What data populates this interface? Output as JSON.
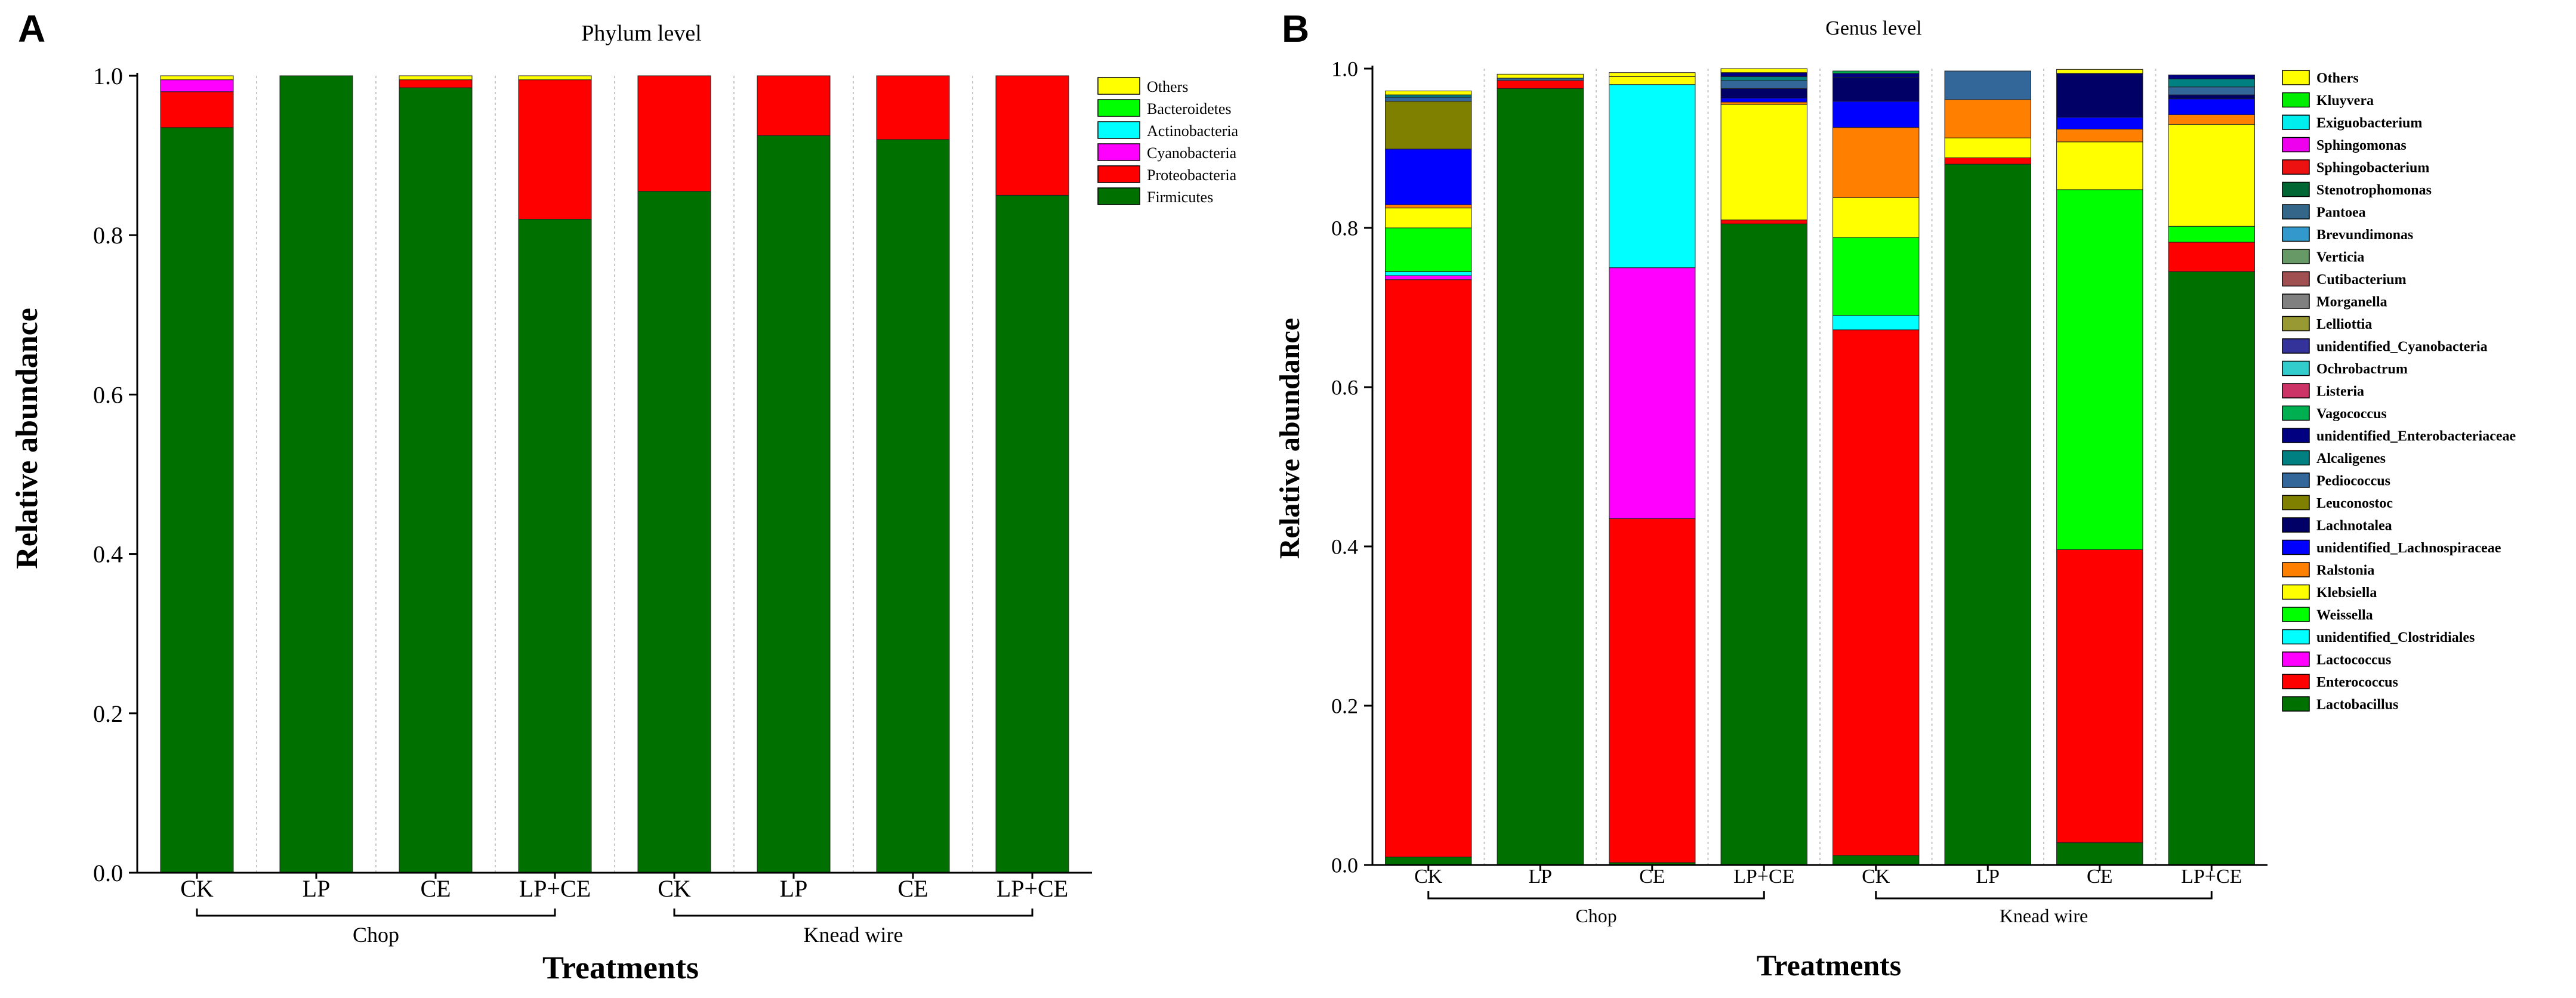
{
  "figure": {
    "panel_a": "A",
    "panel_b": "B"
  },
  "chart_data": [
    {
      "type": "bar",
      "stacked": true,
      "title": "Phylum level",
      "xlabel": "Treatments",
      "ylabel": "Relative abundance",
      "ylim": [
        0,
        1.0
      ],
      "yticks": [
        "0.0",
        "0.2",
        "0.4",
        "0.6",
        "0.8",
        "1.0"
      ],
      "categories": [
        "CK",
        "LP",
        "CE",
        "LP+CE",
        "CK",
        "LP",
        "CE",
        "LP+CE"
      ],
      "groups": [
        {
          "label": "Chop",
          "from": 0,
          "to": 3
        },
        {
          "label": "Knead wire",
          "from": 4,
          "to": 7
        }
      ],
      "legend_position": "top-right",
      "series": [
        {
          "name": "Firmicutes",
          "color": "#007000",
          "values": [
            0.935,
            1.0,
            0.985,
            0.82,
            0.855,
            0.925,
            0.92,
            0.85
          ]
        },
        {
          "name": "Proteobacteria",
          "color": "#ff0000",
          "values": [
            0.045,
            0.0,
            0.01,
            0.175,
            0.145,
            0.075,
            0.08,
            0.15
          ]
        },
        {
          "name": "Cyanobacteria",
          "color": "#ff00ff",
          "values": [
            0.015,
            0.0,
            0.0,
            0.0,
            0.0,
            0.0,
            0.0,
            0.0
          ]
        },
        {
          "name": "Actinobacteria",
          "color": "#00ffff",
          "values": [
            0.0,
            0.0,
            0.0,
            0.0,
            0.0,
            0.0,
            0.0,
            0.0
          ]
        },
        {
          "name": "Bacteroidetes",
          "color": "#00ff00",
          "values": [
            0.0,
            0.0,
            0.0,
            0.0,
            0.0,
            0.0,
            0.0,
            0.0
          ]
        },
        {
          "name": "Others",
          "color": "#ffff00",
          "values": [
            0.005,
            0.0,
            0.005,
            0.005,
            0.0,
            0.0,
            0.0,
            0.0
          ]
        }
      ]
    },
    {
      "type": "bar",
      "stacked": true,
      "title": "Genus level",
      "xlabel": "Treatments",
      "ylabel": "Relative abundance",
      "ylim": [
        0,
        1.0
      ],
      "yticks": [
        "0.0",
        "0.2",
        "0.4",
        "0.6",
        "0.8",
        "1.0"
      ],
      "categories": [
        "CK",
        "LP",
        "CE",
        "LP+CE",
        "CK",
        "LP",
        "CE",
        "LP+CE"
      ],
      "groups": [
        {
          "label": "Chop",
          "from": 0,
          "to": 3
        },
        {
          "label": "Knead wire",
          "from": 4,
          "to": 7
        }
      ],
      "legend_position": "right",
      "series": [
        {
          "name": "Lactobacillus",
          "color": "#007000",
          "values": [
            0.01,
            0.975,
            0.003,
            0.805,
            0.012,
            0.88,
            0.028,
            0.745
          ]
        },
        {
          "name": "Enterococcus",
          "color": "#ff0000",
          "values": [
            0.725,
            0.01,
            0.432,
            0.005,
            0.66,
            0.008,
            0.368,
            0.037
          ]
        },
        {
          "name": "Lactococcus",
          "color": "#ff00ff",
          "values": [
            0.005,
            0.0,
            0.315,
            0.0,
            0.0,
            0.0,
            0.0,
            0.0
          ]
        },
        {
          "name": "unidentified_Clostridiales",
          "color": "#00ffff",
          "values": [
            0.005,
            0.0,
            0.23,
            0.0,
            0.018,
            0.0,
            0.0,
            0.0
          ]
        },
        {
          "name": "Weissella",
          "color": "#00ff00",
          "values": [
            0.055,
            0.0,
            0.0,
            0.0,
            0.098,
            0.0,
            0.452,
            0.02
          ]
        },
        {
          "name": "Klebsiella",
          "color": "#ffff00",
          "values": [
            0.025,
            0.0,
            0.01,
            0.145,
            0.05,
            0.025,
            0.06,
            0.128
          ]
        },
        {
          "name": "Ralstonia",
          "color": "#ff8000",
          "values": [
            0.004,
            0.0,
            0.0,
            0.003,
            0.088,
            0.048,
            0.016,
            0.012
          ]
        },
        {
          "name": "unidentified_Lachnospiraceae",
          "color": "#0000ff",
          "values": [
            0.07,
            0.0,
            0.0,
            0.005,
            0.033,
            0.0,
            0.015,
            0.02
          ]
        },
        {
          "name": "Lachnotalea",
          "color": "#000066",
          "values": [
            0.0,
            0.0,
            0.0,
            0.012,
            0.03,
            0.0,
            0.055,
            0.005
          ]
        },
        {
          "name": "Leuconostoc",
          "color": "#808000",
          "values": [
            0.06,
            0.0,
            0.0,
            0.0,
            0.0,
            0.0,
            0.0,
            0.0
          ]
        },
        {
          "name": "Pediococcus",
          "color": "#336699",
          "values": [
            0.005,
            0.003,
            0.0,
            0.01,
            0.0,
            0.036,
            0.0,
            0.01
          ]
        },
        {
          "name": "Alcaligenes",
          "color": "#008080",
          "values": [
            0.003,
            0.0,
            0.0,
            0.005,
            0.0,
            0.0,
            0.0,
            0.01
          ]
        },
        {
          "name": "unidentified_Enterobacteriaceae",
          "color": "#000080",
          "values": [
            0.0,
            0.0,
            0.0,
            0.005,
            0.005,
            0.0,
            0.0,
            0.005
          ]
        },
        {
          "name": "Vagococcus",
          "color": "#00b050",
          "values": [
            0.0,
            0.0,
            0.0,
            0.0,
            0.003,
            0.0,
            0.0,
            0.0
          ]
        },
        {
          "name": "Listeria",
          "color": "#cc3366",
          "values": [
            0.0,
            0.0,
            0.0,
            0.0,
            0.0,
            0.0,
            0.0,
            0.0
          ]
        },
        {
          "name": "Ochrobactrum",
          "color": "#33cccc",
          "values": [
            0.0,
            0.0,
            0.0,
            0.0,
            0.0,
            0.0,
            0.0,
            0.0
          ]
        },
        {
          "name": "unidentified_Cyanobacteria",
          "color": "#333399",
          "values": [
            0.0,
            0.0,
            0.0,
            0.0,
            0.0,
            0.0,
            0.0,
            0.0
          ]
        },
        {
          "name": "Lelliottia",
          "color": "#999933",
          "values": [
            0.0,
            0.0,
            0.0,
            0.0,
            0.0,
            0.0,
            0.0,
            0.0
          ]
        },
        {
          "name": "Morganella",
          "color": "#808080",
          "values": [
            0.0,
            0.0,
            0.0,
            0.0,
            0.0,
            0.0,
            0.0,
            0.0
          ]
        },
        {
          "name": "Cutibacterium",
          "color": "#a05050",
          "values": [
            0.0,
            0.0,
            0.0,
            0.0,
            0.0,
            0.0,
            0.0,
            0.0
          ]
        },
        {
          "name": "Verticia",
          "color": "#669966",
          "values": [
            0.0,
            0.0,
            0.0,
            0.0,
            0.0,
            0.0,
            0.0,
            0.0
          ]
        },
        {
          "name": "Brevundimonas",
          "color": "#3399cc",
          "values": [
            0.0,
            0.0,
            0.0,
            0.0,
            0.0,
            0.0,
            0.0,
            0.0
          ]
        },
        {
          "name": "Pantoea",
          "color": "#336688",
          "values": [
            0.0,
            0.0,
            0.0,
            0.0,
            0.0,
            0.0,
            0.0,
            0.0
          ]
        },
        {
          "name": "Stenotrophomonas",
          "color": "#006633",
          "values": [
            0.0,
            0.0,
            0.0,
            0.0,
            0.0,
            0.0,
            0.0,
            0.0
          ]
        },
        {
          "name": "Sphingobacterium",
          "color": "#ee1111",
          "values": [
            0.0,
            0.0,
            0.0,
            0.0,
            0.0,
            0.0,
            0.0,
            0.0
          ]
        },
        {
          "name": "Sphingomonas",
          "color": "#ee00ee",
          "values": [
            0.0,
            0.0,
            0.0,
            0.0,
            0.0,
            0.0,
            0.0,
            0.0
          ]
        },
        {
          "name": "Exiguobacterium",
          "color": "#00eeee",
          "values": [
            0.0,
            0.0,
            0.0,
            0.0,
            0.0,
            0.0,
            0.0,
            0.0
          ]
        },
        {
          "name": "Kluyvera",
          "color": "#00ee00",
          "values": [
            0.0,
            0.0,
            0.0,
            0.0,
            0.0,
            0.0,
            0.0,
            0.0
          ]
        },
        {
          "name": "Others",
          "color": "#ffff00",
          "values": [
            0.005,
            0.005,
            0.005,
            0.005,
            0.0,
            0.0,
            0.005,
            0.0
          ]
        }
      ]
    }
  ]
}
